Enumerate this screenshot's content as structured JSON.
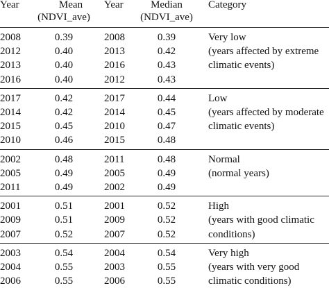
{
  "header": {
    "year1": "Year",
    "mean_line1": "Mean",
    "mean_line2": "(NDVI_ave)",
    "year2": "Year",
    "median_line1": "Median",
    "median_line2": "(NDVI_ave)",
    "category": "Category"
  },
  "groups": [
    {
      "rows": [
        {
          "year1": "2008",
          "mean": "0.39",
          "year2": "2008",
          "median": "0.39",
          "category": "Very low"
        },
        {
          "year1": "2012",
          "mean": "0.40",
          "year2": "2013",
          "median": "0.42",
          "category": "(years affected by extreme"
        },
        {
          "year1": "2013",
          "mean": "0.40",
          "year2": "2016",
          "median": "0.43",
          "category": "climatic events)"
        },
        {
          "year1": "2016",
          "mean": "0.40",
          "year2": "2012",
          "median": "0.43",
          "category": ""
        }
      ]
    },
    {
      "rows": [
        {
          "year1": "2017",
          "mean": "0.42",
          "year2": "2017",
          "median": "0.44",
          "category": "Low"
        },
        {
          "year1": "2014",
          "mean": "0.42",
          "year2": "2014",
          "median": "0.45",
          "category": "(years affected by moderate"
        },
        {
          "year1": "2015",
          "mean": "0.45",
          "year2": "2010",
          "median": "0.47",
          "category": "climatic events)"
        },
        {
          "year1": "2010",
          "mean": "0.46",
          "year2": "2015",
          "median": "0.48",
          "category": ""
        }
      ]
    },
    {
      "rows": [
        {
          "year1": "2002",
          "mean": "0.48",
          "year2": "2011",
          "median": "0.48",
          "category": "Normal"
        },
        {
          "year1": "2005",
          "mean": "0.49",
          "year2": "2005",
          "median": "0.49",
          "category": "(normal years)"
        },
        {
          "year1": "2011",
          "mean": "0.49",
          "year2": "2002",
          "median": "0.49",
          "category": ""
        }
      ]
    },
    {
      "rows": [
        {
          "year1": "2001",
          "mean": "0.51",
          "year2": "2001",
          "median": "0.52",
          "category": "High"
        },
        {
          "year1": "2009",
          "mean": "0.51",
          "year2": "2009",
          "median": "0.52",
          "category": "(years with good climatic"
        },
        {
          "year1": "2007",
          "mean": "0.52",
          "year2": "2007",
          "median": "0.52",
          "category": "conditions)"
        }
      ]
    },
    {
      "rows": [
        {
          "year1": "2003",
          "mean": "0.54",
          "year2": "2004",
          "median": "0.54",
          "category": "Very high"
        },
        {
          "year1": "2004",
          "mean": "0.55",
          "year2": "2003",
          "median": "0.55",
          "category": "(years with very good"
        },
        {
          "year1": "2006",
          "mean": "0.55",
          "year2": "2006",
          "median": "0.55",
          "category": "climatic conditions)"
        }
      ]
    }
  ]
}
